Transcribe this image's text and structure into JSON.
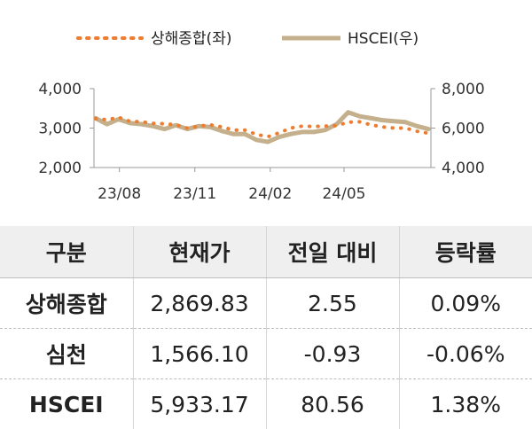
{
  "chart_data": {
    "type": "line",
    "legend": {
      "placement": "top-center",
      "items": [
        "상해종합(좌)",
        "HSCEI(우)"
      ]
    },
    "x_ticks": [
      "23/08",
      "23/11",
      "24/02",
      "24/05"
    ],
    "x_tick_dates": [
      "2023-08",
      "2023-11",
      "2024-02",
      "2024-05"
    ],
    "x_range": [
      "2023-07-01",
      "2024-08-15"
    ],
    "y_left": {
      "ticks": [
        "4,000",
        "3,000",
        "2,000"
      ],
      "range": [
        2000,
        4000
      ]
    },
    "y_right": {
      "ticks": [
        "8,000",
        "6,000",
        "4,000"
      ],
      "range": [
        4000,
        8000
      ]
    },
    "grid": false,
    "series": [
      {
        "name": "상해종합(좌)",
        "axis": "left",
        "style": "dotted",
        "color": "#ED7D31",
        "x": [
          "2023-07-03",
          "2023-07-17",
          "2023-07-31",
          "2023-08-14",
          "2023-08-28",
          "2023-09-11",
          "2023-09-25",
          "2023-10-09",
          "2023-10-23",
          "2023-11-06",
          "2023-11-20",
          "2023-12-04",
          "2023-12-18",
          "2024-01-01",
          "2024-01-15",
          "2024-01-29",
          "2024-02-12",
          "2024-02-26",
          "2024-03-11",
          "2024-03-25",
          "2024-04-08",
          "2024-04-22",
          "2024-05-06",
          "2024-05-20",
          "2024-06-03",
          "2024-06-17",
          "2024-07-01",
          "2024-07-15",
          "2024-07-29",
          "2024-08-12"
        ],
        "y": [
          3240,
          3210,
          3275,
          3170,
          3160,
          3120,
          3110,
          3080,
          3000,
          3050,
          3080,
          3030,
          2950,
          2950,
          2840,
          2780,
          2880,
          3000,
          3050,
          3040,
          3050,
          3060,
          3150,
          3160,
          3080,
          3030,
          3000,
          3000,
          2920,
          2870
        ]
      },
      {
        "name": "HSCEI(우)",
        "axis": "right",
        "style": "solid",
        "color": "#C4B08C",
        "x": [
          "2023-07-03",
          "2023-07-17",
          "2023-07-31",
          "2023-08-14",
          "2023-08-28",
          "2023-09-11",
          "2023-09-25",
          "2023-10-09",
          "2023-10-23",
          "2023-11-06",
          "2023-11-20",
          "2023-12-04",
          "2023-12-18",
          "2024-01-01",
          "2024-01-15",
          "2024-01-29",
          "2024-02-12",
          "2024-02-26",
          "2024-03-11",
          "2024-03-25",
          "2024-04-08",
          "2024-04-22",
          "2024-05-06",
          "2024-05-20",
          "2024-06-03",
          "2024-06-17",
          "2024-07-01",
          "2024-07-15",
          "2024-07-29",
          "2024-08-12"
        ],
        "y": [
          6500,
          6200,
          6450,
          6250,
          6200,
          6100,
          5950,
          6150,
          5950,
          6100,
          6050,
          5850,
          5700,
          5700,
          5400,
          5300,
          5550,
          5700,
          5800,
          5800,
          5900,
          6200,
          6800,
          6600,
          6500,
          6400,
          6350,
          6300,
          6100,
          5950
        ]
      }
    ]
  },
  "table": {
    "headers": [
      "구분",
      "현재가",
      "전일 대비",
      "등락률"
    ],
    "rows": [
      [
        "상해종합",
        "2,869.83",
        "2.55",
        "0.09%"
      ],
      [
        "심천",
        "1,566.10",
        "-0.93",
        "-0.06%"
      ],
      [
        "HSCEI",
        "5,933.17",
        "80.56",
        "1.38%"
      ]
    ]
  }
}
